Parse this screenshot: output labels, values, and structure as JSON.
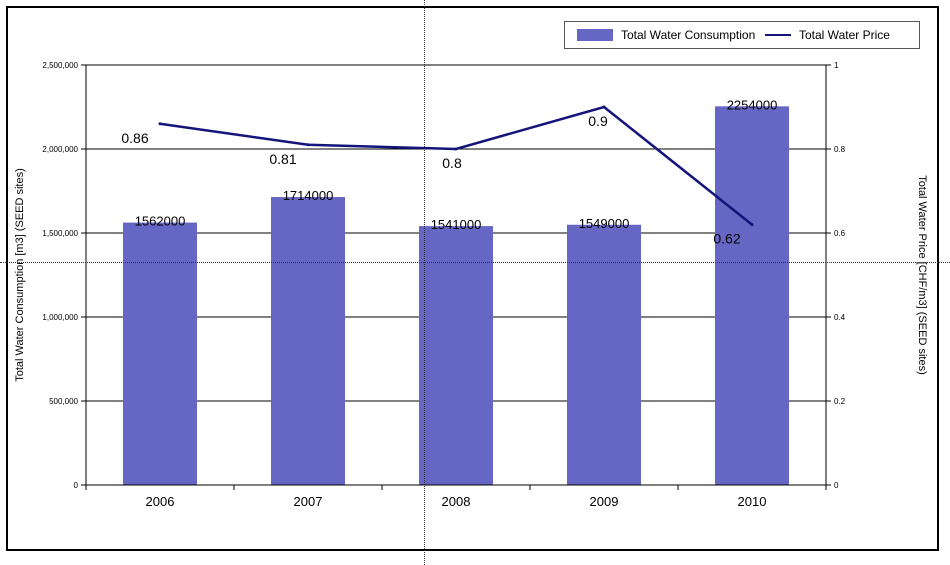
{
  "colors": {
    "bar": "#6666c4",
    "line": "#14147a",
    "grid": "#000000"
  },
  "legend": {
    "consumption_label": "Total Water Consumption",
    "price_label": "Total Water Price"
  },
  "chart_data": {
    "type": "bar",
    "categories": [
      "2006",
      "2007",
      "2008",
      "2009",
      "2010"
    ],
    "series": [
      {
        "name": "Total Water Consumption",
        "type": "bar",
        "axis": "left",
        "values": [
          1562000,
          1714000,
          1541000,
          1549000,
          2254000
        ]
      },
      {
        "name": "Total Water Price",
        "type": "line",
        "axis": "right",
        "values": [
          0.86,
          0.81,
          0.8,
          0.9,
          0.62
        ]
      }
    ],
    "ylabel": "Total Water Consumption [m3] (SEED sites)",
    "y2label": "Total Water Price [CHF/m3] (SEED sites)",
    "ylim": [
      0,
      2500000
    ],
    "y2lim": [
      0,
      1
    ],
    "yticks": [
      "0",
      "500,000",
      "1,000,000",
      "1,500,000",
      "2,000,000",
      "2,500,000"
    ],
    "y2ticks": [
      "0",
      "0.2",
      "0.4",
      "0.6",
      "0.8",
      "1"
    ],
    "bar_labels": [
      "1562000",
      "1714000",
      "1541000",
      "1549000",
      "2254000"
    ],
    "line_labels": [
      "0.86",
      "0.81",
      "0.8",
      "0.9",
      "0.62"
    ],
    "grid": true,
    "legend_position": "top-right"
  }
}
